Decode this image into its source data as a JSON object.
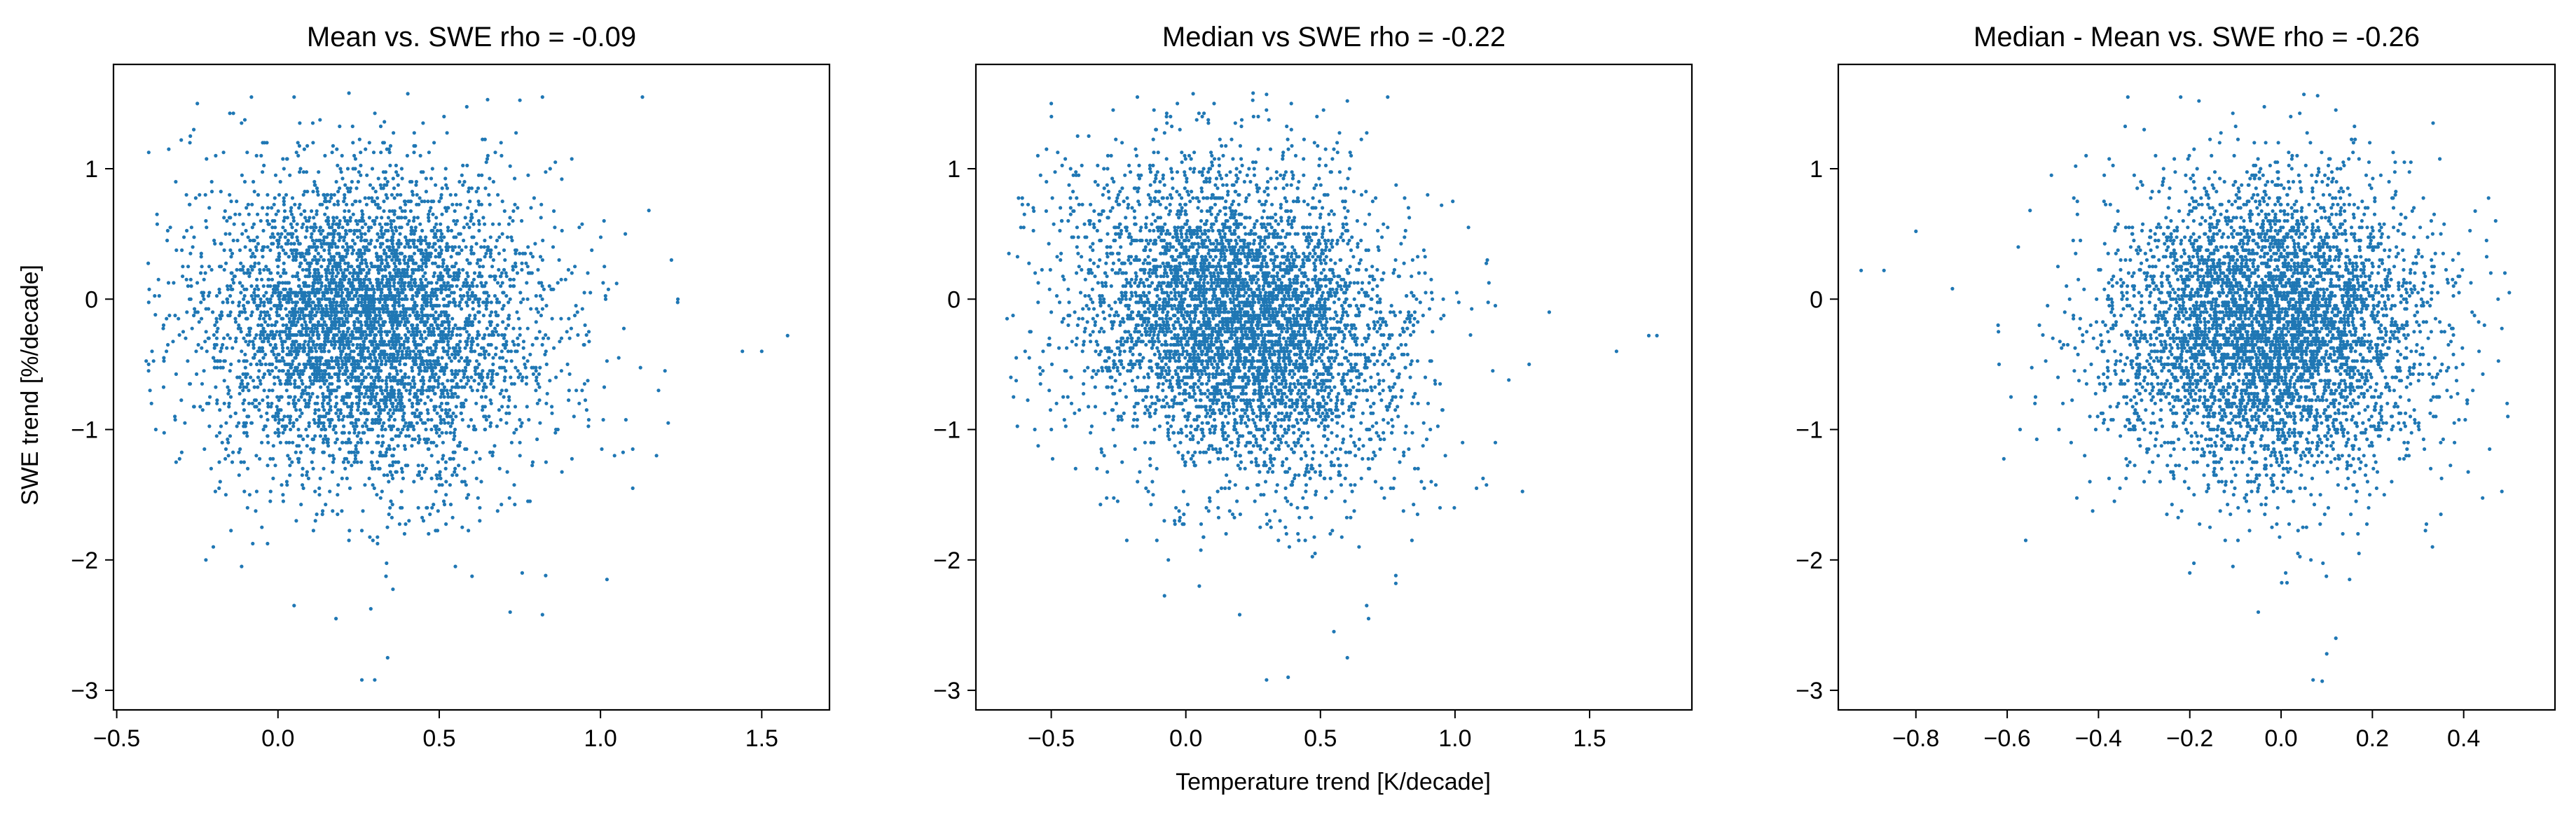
{
  "figure": {
    "xlabel": "Temperature trend [K/decade]",
    "ylabel": "SWE trend [%/decade]",
    "point_color": "#1f77b4"
  },
  "chart_data": [
    {
      "type": "scatter",
      "title": "Mean vs. SWE rho = -0.09",
      "xlabel": "",
      "ylabel": "SWE trend [%/decade]",
      "xlim": [
        -0.51,
        1.71
      ],
      "ylim": [
        -3.15,
        1.8
      ],
      "xticks": [
        -0.5,
        0.0,
        0.5,
        1.0,
        1.5
      ],
      "xtick_labels": [
        "−0.5",
        "0.0",
        "0.5",
        "1.0",
        "1.5"
      ],
      "yticks": [
        -3,
        -2,
        -1,
        0,
        1
      ],
      "ytick_labels": [
        "−3",
        "−2",
        "−1",
        "0",
        "1"
      ],
      "grid": false,
      "point_count_approx": 5000,
      "distribution": {
        "center": [
          0.28,
          -0.15
        ],
        "x_range": [
          -0.42,
          1.62
        ],
        "y_range": [
          -2.95,
          1.58
        ]
      },
      "series": [
        {
          "points": [
            [
              0.05,
              1.55
            ],
            [
              0.22,
              1.58
            ],
            [
              0.82,
              1.55
            ],
            [
              1.13,
              1.55
            ],
            [
              0.65,
              1.53
            ],
            [
              -0.25,
              1.5
            ],
            [
              0.33,
              1.36
            ],
            [
              0.45,
              1.35
            ],
            [
              -0.3,
              1.22
            ],
            [
              0.86,
              1.05
            ],
            [
              0.72,
              1.02
            ],
            [
              0.88,
              0.92
            ],
            [
              1.15,
              0.68
            ],
            [
              1.22,
              0.3
            ],
            [
              1.24,
              0.0
            ],
            [
              1.05,
              0.12
            ],
            [
              0.95,
              0.05
            ],
            [
              1.5,
              -0.4
            ],
            [
              1.58,
              -0.28
            ],
            [
              1.44,
              -0.4
            ],
            [
              1.2,
              -0.55
            ],
            [
              1.18,
              -0.7
            ],
            [
              1.21,
              -0.95
            ],
            [
              1.1,
              -1.15
            ],
            [
              1.1,
              -1.45
            ],
            [
              1.02,
              -2.15
            ],
            [
              0.83,
              -2.12
            ],
            [
              0.72,
              -2.4
            ],
            [
              0.82,
              -2.42
            ],
            [
              0.55,
              -2.05
            ],
            [
              0.34,
              -2.75
            ],
            [
              0.26,
              -2.92
            ],
            [
              0.3,
              -2.92
            ],
            [
              0.18,
              -2.45
            ],
            [
              0.05,
              -2.35
            ],
            [
              -0.05,
              -1.75
            ],
            [
              -0.38,
              -0.12
            ],
            [
              -0.2,
              -0.45
            ],
            [
              0.0,
              0.5
            ],
            [
              -0.15,
              0.8
            ],
            [
              0.15,
              0.2
            ],
            [
              0.25,
              -0.1
            ],
            [
              0.32,
              -0.5
            ],
            [
              0.4,
              -0.3
            ],
            [
              0.28,
              -1.0
            ],
            [
              0.3,
              -1.3
            ],
            [
              0.2,
              -0.75
            ],
            [
              0.12,
              0.05
            ],
            [
              0.45,
              0.1
            ],
            [
              0.55,
              -0.2
            ],
            [
              0.6,
              0.35
            ],
            [
              0.7,
              0.05
            ],
            [
              0.08,
              -0.35
            ],
            [
              0.35,
              0.6
            ],
            [
              0.5,
              0.75
            ],
            [
              0.65,
              -0.6
            ],
            [
              0.75,
              -1.1
            ],
            [
              0.38,
              -1.6
            ],
            [
              0.22,
              -1.85
            ],
            [
              0.95,
              -0.35
            ]
          ]
        }
      ]
    },
    {
      "type": "scatter",
      "title": "Median vs SWE rho = -0.22",
      "xlabel": "Temperature trend [K/decade]",
      "ylabel": "",
      "xlim": [
        -0.78,
        1.88
      ],
      "ylim": [
        -3.15,
        1.8
      ],
      "xticks": [
        -0.5,
        0.0,
        0.5,
        1.0,
        1.5
      ],
      "xtick_labels": [
        "−0.5",
        "0.0",
        "0.5",
        "1.0",
        "1.5"
      ],
      "yticks": [
        -3,
        -2,
        -1,
        0,
        1
      ],
      "ytick_labels": [
        "−3",
        "−2",
        "−1",
        "0",
        "1"
      ],
      "grid": false,
      "point_count_approx": 5000,
      "distribution": {
        "center": [
          0.2,
          -0.15
        ],
        "x_range": [
          -0.68,
          1.78
        ],
        "y_range": [
          -2.95,
          1.58
        ]
      },
      "series": [
        {
          "points": [
            [
              -0.5,
              1.5
            ],
            [
              -0.18,
              1.55
            ],
            [
              0.25,
              1.58
            ],
            [
              0.3,
              1.57
            ],
            [
              0.75,
              1.55
            ],
            [
              0.6,
              1.52
            ],
            [
              -0.55,
              1.1
            ],
            [
              -0.6,
              0.65
            ],
            [
              0.55,
              1.15
            ],
            [
              0.95,
              0.72
            ],
            [
              1.05,
              0.55
            ],
            [
              1.12,
              0.3
            ],
            [
              1.15,
              -0.05
            ],
            [
              1.35,
              -0.1
            ],
            [
              1.72,
              -0.28
            ],
            [
              1.75,
              -0.28
            ],
            [
              1.6,
              -0.4
            ],
            [
              1.2,
              -0.62
            ],
            [
              1.15,
              -1.1
            ],
            [
              1.08,
              -1.45
            ],
            [
              0.78,
              -2.12
            ],
            [
              0.78,
              -2.18
            ],
            [
              0.55,
              -2.55
            ],
            [
              0.6,
              -2.75
            ],
            [
              0.3,
              -2.92
            ],
            [
              0.38,
              -2.9
            ],
            [
              0.2,
              -2.42
            ],
            [
              0.05,
              -2.2
            ],
            [
              -0.08,
              -1.7
            ],
            [
              -0.63,
              -0.45
            ],
            [
              -0.65,
              -0.6
            ],
            [
              -0.5,
              -0.1
            ],
            [
              -0.3,
              0.2
            ],
            [
              -0.1,
              0.55
            ],
            [
              0.05,
              0.1
            ],
            [
              0.15,
              -0.2
            ],
            [
              0.25,
              0.05
            ],
            [
              0.35,
              -0.4
            ],
            [
              0.3,
              -0.9
            ],
            [
              0.22,
              -1.3
            ],
            [
              0.45,
              -0.65
            ],
            [
              0.55,
              -0.15
            ],
            [
              0.65,
              0.3
            ],
            [
              0.4,
              0.75
            ],
            [
              0.8,
              -0.35
            ],
            [
              0.9,
              -0.8
            ],
            [
              0.0,
              -0.6
            ],
            [
              -0.2,
              -0.3
            ],
            [
              0.12,
              -1.6
            ],
            [
              0.48,
              -1.95
            ]
          ]
        }
      ]
    },
    {
      "type": "scatter",
      "title": "Median - Mean vs. SWE rho = -0.26",
      "xlabel": "",
      "ylabel": "",
      "xlim": [
        -0.97,
        0.6
      ],
      "ylim": [
        -3.15,
        1.8
      ],
      "xticks": [
        -0.8,
        -0.6,
        -0.4,
        -0.2,
        0.0,
        0.2,
        0.4
      ],
      "xtick_labels": [
        "−0.8",
        "−0.6",
        "−0.4",
        "−0.2",
        "0.0",
        "0.2",
        "0.4"
      ],
      "yticks": [
        -3,
        -2,
        -1,
        0,
        1
      ],
      "ytick_labels": [
        "−3",
        "−2",
        "−1",
        "0",
        "1"
      ],
      "grid": false,
      "point_count_approx": 5000,
      "distribution": {
        "center": [
          -0.02,
          -0.15
        ],
        "x_range": [
          -0.92,
          0.5
        ],
        "y_range": [
          -2.95,
          1.58
        ]
      },
      "series": [
        {
          "points": [
            [
              -0.92,
              0.22
            ],
            [
              -0.87,
              0.22
            ],
            [
              -0.8,
              0.52
            ],
            [
              -0.72,
              0.08
            ],
            [
              -0.62,
              -0.2
            ],
            [
              -0.55,
              0.68
            ],
            [
              -0.45,
              1.02
            ],
            [
              -0.3,
              1.3
            ],
            [
              -0.22,
              1.55
            ],
            [
              -0.18,
              1.52
            ],
            [
              0.05,
              1.57
            ],
            [
              0.08,
              1.56
            ],
            [
              0.12,
              1.45
            ],
            [
              0.25,
              1.05
            ],
            [
              0.35,
              0.5
            ],
            [
              0.45,
              0.45
            ],
            [
              0.5,
              0.05
            ],
            [
              0.42,
              -0.7
            ],
            [
              0.35,
              -1.65
            ],
            [
              0.28,
              -1.2
            ],
            [
              0.15,
              -2.15
            ],
            [
              0.12,
              -2.6
            ],
            [
              0.1,
              -2.72
            ],
            [
              0.07,
              -2.92
            ],
            [
              0.09,
              -2.93
            ],
            [
              -0.05,
              -2.4
            ],
            [
              -0.2,
              -2.1
            ],
            [
              -0.3,
              -1.4
            ],
            [
              -0.4,
              -0.6
            ],
            [
              -0.5,
              -0.3
            ],
            [
              -0.35,
              0.1
            ],
            [
              -0.2,
              0.3
            ],
            [
              -0.1,
              -0.05
            ],
            [
              0.0,
              0.15
            ],
            [
              0.05,
              -0.4
            ],
            [
              -0.05,
              -0.85
            ],
            [
              0.02,
              -1.3
            ],
            [
              0.1,
              0.5
            ],
            [
              0.18,
              -0.2
            ],
            [
              -0.15,
              0.7
            ],
            [
              -0.25,
              -0.5
            ],
            [
              0.22,
              -0.9
            ],
            [
              -0.02,
              -1.75
            ],
            [
              0.3,
              0.05
            ],
            [
              -0.45,
              0.35
            ]
          ]
        }
      ]
    }
  ]
}
